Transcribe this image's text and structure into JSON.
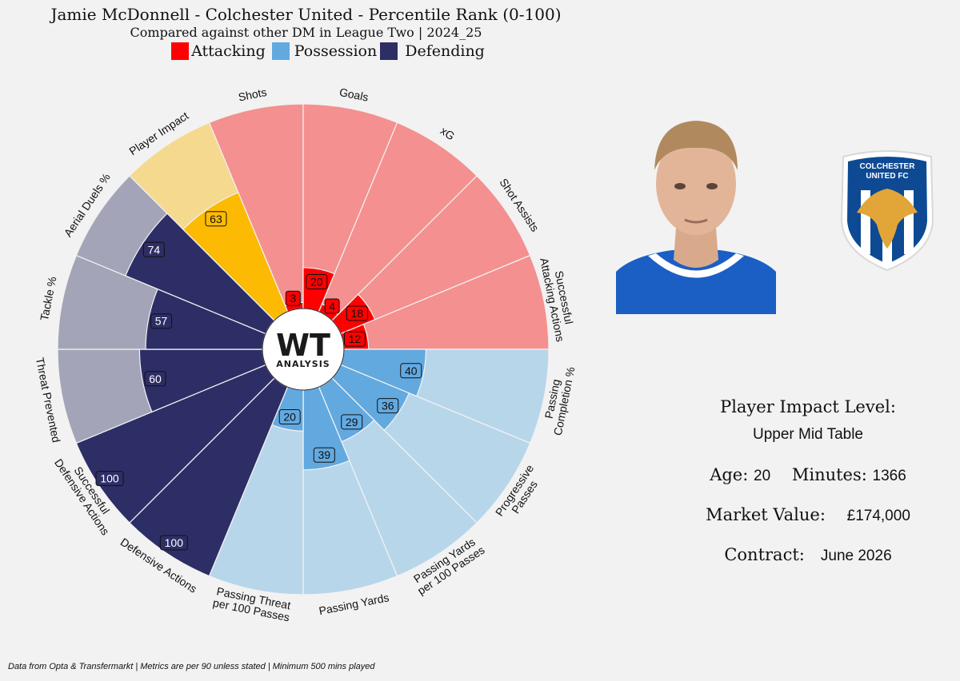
{
  "title": "Jamie McDonnell - Colchester United - Percentile Rank (0-100)",
  "subtitle": "Compared against other DM in League Two | 2024_25",
  "legend": [
    {
      "label": "Attacking",
      "color": "#ff0000"
    },
    {
      "label": "Possession",
      "color": "#62a9e0"
    },
    {
      "label": "Defending",
      "color": "#2e2e66"
    }
  ],
  "logo": {
    "top": "WT",
    "bottom": "ANALYSIS"
  },
  "club_badge": {
    "line1": "COLCHESTER",
    "line2": "UNITED FC"
  },
  "info": {
    "impact_label": "Player Impact Level:",
    "impact_value": "Upper Mid Table",
    "age_label": "Age:",
    "age_value": "20",
    "minutes_label": "Minutes:",
    "minutes_value": "1366",
    "market_label": "Market Value:",
    "market_value": "£174,000",
    "contract_label": "Contract:",
    "contract_value": "June 2026"
  },
  "footnote": "Data from Opta & Transfermarkt | Metrics are per 90 unless stated | Minimum 500 mins played",
  "chart_data": {
    "type": "polar_bar",
    "rmax": 100,
    "categories": [
      "Shots",
      "Goals",
      "xG",
      "Shot Assists",
      "Successful Attacking Actions",
      "Passing Completion %",
      "Progressive Passes",
      "Passing Yards per 100 Passes",
      "Passing Yards",
      "Passing Threat per 100 Passes",
      "Defensive Actions",
      "Successful Defensive Actions",
      "Threat Prevented",
      "Tackle %",
      "Aerial Duels %",
      "Player Impact"
    ],
    "category_labels": [
      [
        "Shots"
      ],
      [
        "Goals"
      ],
      [
        "xG"
      ],
      [
        "Shot Assists"
      ],
      [
        "Successful",
        "Attacking Actions"
      ],
      [
        "Passing",
        "Completion %"
      ],
      [
        "Progressive",
        "Passes"
      ],
      [
        "Passing Yards",
        "per 100 Passes"
      ],
      [
        "Passing Yards"
      ],
      [
        "Passing Threat",
        "per 100 Passes"
      ],
      [
        "Defensive Actions"
      ],
      [
        "Successful",
        "Defensive Actions"
      ],
      [
        "Threat Prevented"
      ],
      [
        "Tackle %"
      ],
      [
        "Aerial Duels %"
      ],
      [
        "Player Impact"
      ]
    ],
    "values": [
      3,
      20,
      4,
      18,
      12,
      40,
      36,
      29,
      39,
      20,
      100,
      100,
      60,
      57,
      74,
      63
    ],
    "groups": [
      "Attacking",
      "Attacking",
      "Attacking",
      "Attacking",
      "Attacking",
      "Possession",
      "Possession",
      "Possession",
      "Possession",
      "Possession",
      "Defending",
      "Defending",
      "Defending",
      "Defending",
      "Defending",
      "Impact"
    ],
    "colors": {
      "Attacking": {
        "bar": "#ff0000",
        "bg": "#f59090"
      },
      "Possession": {
        "bar": "#62a9e0",
        "bg": "#b8d6ea"
      },
      "Defending": {
        "bar": "#2e2e66",
        "bg": "#a4a4b9"
      },
      "Impact": {
        "bar": "#fcba03",
        "bg": "#f5d98f"
      }
    },
    "legend_position": "top"
  }
}
